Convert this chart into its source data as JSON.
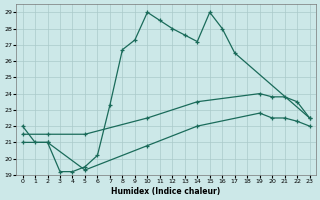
{
  "xlabel": "Humidex (Indice chaleur)",
  "xlim": [
    -0.5,
    23.5
  ],
  "ylim": [
    19,
    29.5
  ],
  "yticks": [
    19,
    20,
    21,
    22,
    23,
    24,
    25,
    26,
    27,
    28,
    29
  ],
  "xticks": [
    0,
    1,
    2,
    3,
    4,
    5,
    6,
    7,
    8,
    9,
    10,
    11,
    12,
    13,
    14,
    15,
    16,
    17,
    18,
    19,
    20,
    21,
    22,
    23
  ],
  "bg_color": "#cce8e8",
  "grid_color": "#aacaca",
  "line_color": "#1a6b5a",
  "line1_x": [
    0,
    1,
    2,
    3,
    4,
    5,
    6,
    7,
    8,
    9,
    10,
    11,
    12,
    13,
    14,
    15,
    16,
    17,
    23
  ],
  "line1_y": [
    22,
    21,
    21,
    19.2,
    19.2,
    19.5,
    20.2,
    23.3,
    26.7,
    27.3,
    29.0,
    28.5,
    28.0,
    27.6,
    27.2,
    29.0,
    28.0,
    26.5,
    22.5
  ],
  "line2_x": [
    0,
    2,
    5,
    10,
    14,
    19,
    20,
    21,
    22,
    23
  ],
  "line2_y": [
    21.5,
    21.5,
    21.5,
    22.5,
    23.5,
    24.0,
    23.8,
    23.8,
    23.5,
    22.5
  ],
  "line3_x": [
    0,
    2,
    5,
    10,
    14,
    19,
    20,
    21,
    22,
    23
  ],
  "line3_y": [
    21.0,
    21.0,
    19.3,
    20.8,
    22.0,
    22.8,
    22.5,
    22.5,
    22.3,
    22.0
  ]
}
